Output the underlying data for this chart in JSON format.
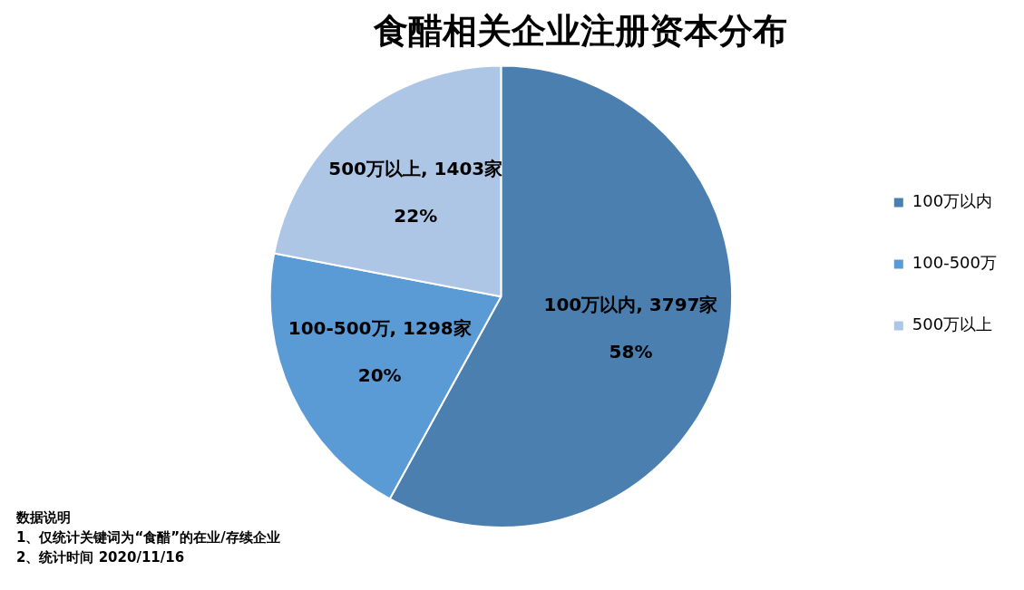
{
  "chart_data": {
    "type": "pie",
    "title": "食醋相关企业注册资本分布",
    "categories": [
      "100万以内",
      "100-500万",
      "500万以上"
    ],
    "values": [
      58,
      20,
      22
    ],
    "colors": [
      "#4a7fb0",
      "#5b9bd5",
      "#adc6e5"
    ],
    "value_labels": [
      "100万以内, 3797家\n58%",
      "100-500万, 1298家\n20%",
      "500万以上, 1403家\n22%"
    ],
    "legend": "right",
    "annotations": [
      "数据说明",
      "1、仅统计关键词为“食醋”的在业/存续企业",
      "2、统计时间 2020/11/16"
    ]
  }
}
